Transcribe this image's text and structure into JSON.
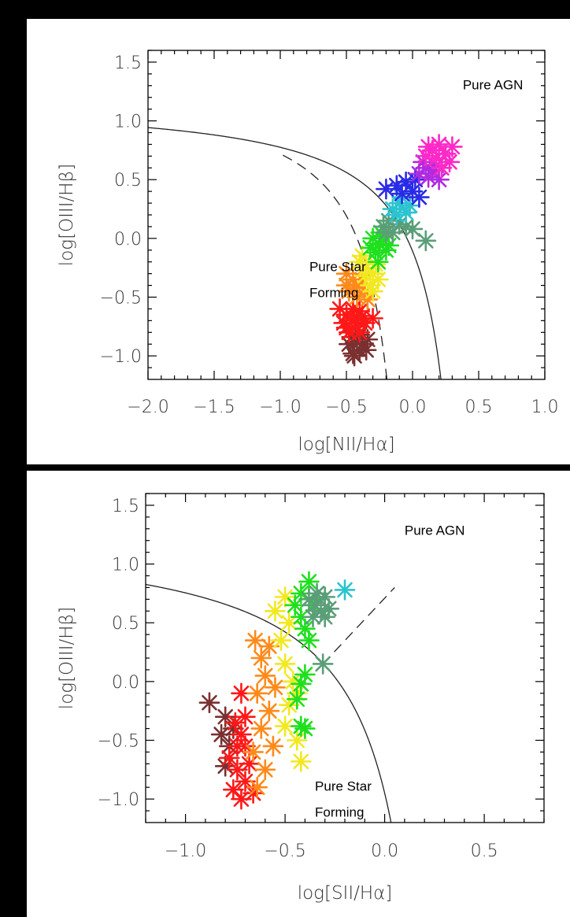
{
  "colors": {
    "page_background": "#000000",
    "panel_background": "#ffffff",
    "axes": "#000000",
    "demarcation_lines": "#222222"
  },
  "chart_data": [
    {
      "type": "scatter",
      "marker": "asterisk",
      "xlabel": "log[NII/Hα]",
      "ylabel": "log[OIII/Hβ]",
      "xlim": [
        -2.0,
        1.0
      ],
      "ylim": [
        -1.2,
        1.6
      ],
      "x_ticks": [
        "−2.0",
        "−1.5",
        "−1.0",
        "−0.5",
        "0.0",
        "0.5",
        "1.0"
      ],
      "y_ticks": [
        "−1.0",
        "−0.5",
        "0.0",
        "0.5",
        "1.0",
        "1.5"
      ],
      "annotations": [
        {
          "text": "Pure AGN",
          "x": 0.38,
          "y": 1.27
        },
        {
          "lines": [
            "Pure Star",
            "Forming"
          ],
          "x": -0.78,
          "y": -0.28
        }
      ],
      "curves": [
        {
          "style": "solid",
          "shape": "kewley",
          "a": 0.61,
          "b": 0.47,
          "c": 1.19,
          "x_min": -2.0
        },
        {
          "style": "dashed",
          "shape": "kauffmann",
          "a": 0.61,
          "b": 0.05,
          "c": 1.3,
          "x_min": -0.98
        }
      ],
      "series": [
        {
          "color": "#7a3030",
          "points": [
            [
              -0.45,
              -0.98
            ],
            [
              -0.4,
              -0.95
            ],
            [
              -0.35,
              -0.95
            ],
            [
              -0.48,
              -0.9
            ],
            [
              -0.42,
              -0.88
            ],
            [
              -0.38,
              -0.9
            ],
            [
              -0.46,
              -0.84
            ],
            [
              -0.4,
              -0.82
            ],
            [
              -0.34,
              -0.86
            ],
            [
              -0.44,
              -1.0
            ]
          ]
        },
        {
          "color": "#ff1818",
          "points": [
            [
              -0.55,
              -0.6
            ],
            [
              -0.5,
              -0.65
            ],
            [
              -0.45,
              -0.6
            ],
            [
              -0.4,
              -0.62
            ],
            [
              -0.52,
              -0.72
            ],
            [
              -0.46,
              -0.7
            ],
            [
              -0.42,
              -0.75
            ],
            [
              -0.36,
              -0.72
            ],
            [
              -0.48,
              -0.8
            ],
            [
              -0.4,
              -0.8
            ],
            [
              -0.44,
              -0.68
            ],
            [
              -0.3,
              -0.68
            ],
            [
              -0.5,
              -0.76
            ],
            [
              -0.38,
              -0.66
            ]
          ]
        },
        {
          "color": "#ff8a1a",
          "points": [
            [
              -0.5,
              -0.3
            ],
            [
              -0.45,
              -0.35
            ],
            [
              -0.4,
              -0.4
            ],
            [
              -0.48,
              -0.45
            ],
            [
              -0.42,
              -0.5
            ],
            [
              -0.36,
              -0.45
            ],
            [
              -0.44,
              -0.42
            ],
            [
              -0.38,
              -0.35
            ],
            [
              -0.5,
              -0.4
            ],
            [
              -0.34,
              -0.52
            ]
          ]
        },
        {
          "color": "#f2e820",
          "points": [
            [
              -0.4,
              -0.2
            ],
            [
              -0.35,
              -0.25
            ],
            [
              -0.3,
              -0.3
            ],
            [
              -0.38,
              -0.15
            ],
            [
              -0.32,
              -0.4
            ],
            [
              -0.28,
              -0.22
            ],
            [
              -0.36,
              -0.32
            ],
            [
              -0.3,
              -0.45
            ],
            [
              -0.26,
              -0.35
            ]
          ]
        },
        {
          "color": "#1ee01e",
          "points": [
            [
              -0.3,
              0.0
            ],
            [
              -0.25,
              -0.05
            ],
            [
              -0.2,
              -0.1
            ],
            [
              -0.28,
              -0.12
            ],
            [
              -0.22,
              0.02
            ],
            [
              -0.26,
              -0.2
            ],
            [
              -0.18,
              -0.06
            ],
            [
              -0.32,
              -0.08
            ],
            [
              -0.24,
              0.05
            ]
          ]
        },
        {
          "color": "#5a9e78",
          "points": [
            [
              -0.22,
              0.1
            ],
            [
              -0.18,
              0.15
            ],
            [
              -0.15,
              0.05
            ],
            [
              -0.1,
              0.12
            ],
            [
              -0.05,
              0.1
            ],
            [
              0.0,
              0.08
            ],
            [
              0.1,
              -0.02
            ],
            [
              -0.2,
              0.05
            ]
          ]
        },
        {
          "color": "#2ac4d0",
          "points": [
            [
              -0.15,
              0.25
            ],
            [
              -0.1,
              0.3
            ],
            [
              -0.05,
              0.22
            ],
            [
              -0.12,
              0.2
            ],
            [
              -0.08,
              0.35
            ],
            [
              -0.02,
              0.28
            ]
          ]
        },
        {
          "color": "#2a2ae8",
          "points": [
            [
              -0.2,
              0.42
            ],
            [
              -0.12,
              0.45
            ],
            [
              -0.05,
              0.48
            ],
            [
              0.0,
              0.4
            ],
            [
              -0.08,
              0.38
            ],
            [
              0.05,
              0.35
            ],
            [
              0.02,
              0.5
            ]
          ]
        },
        {
          "color": "#b02ae0",
          "points": [
            [
              0.05,
              0.55
            ],
            [
              0.1,
              0.6
            ],
            [
              0.15,
              0.58
            ],
            [
              0.2,
              0.5
            ],
            [
              0.12,
              0.52
            ],
            [
              0.08,
              0.65
            ],
            [
              0.18,
              0.62
            ]
          ]
        },
        {
          "color": "#ff28c8",
          "points": [
            [
              0.1,
              0.7
            ],
            [
              0.15,
              0.75
            ],
            [
              0.2,
              0.8
            ],
            [
              0.25,
              0.72
            ],
            [
              0.18,
              0.68
            ],
            [
              0.22,
              0.6
            ],
            [
              0.28,
              0.65
            ],
            [
              0.12,
              0.78
            ],
            [
              0.3,
              0.78
            ]
          ]
        }
      ]
    },
    {
      "type": "scatter",
      "marker": "asterisk",
      "xlabel": "log[SII/Hα]",
      "ylabel": "log[OIII/Hβ]",
      "xlim": [
        -1.2,
        0.8
      ],
      "ylim": [
        -1.2,
        1.6
      ],
      "x_ticks": [
        "−1.0",
        "−0.5",
        "0.0",
        "0.5"
      ],
      "y_ticks": [
        "−1.0",
        "−0.5",
        "0.0",
        "0.5",
        "1.0",
        "1.5"
      ],
      "annotations": [
        {
          "text": "Pure AGN",
          "x": 0.1,
          "y": 1.25
        },
        {
          "lines": [
            "Pure Star",
            "Forming"
          ],
          "x": -0.35,
          "y": -0.93
        }
      ],
      "curves": [
        {
          "style": "solid",
          "shape": "kewley",
          "a": 0.72,
          "b": 0.32,
          "c": 1.3,
          "x_min": -1.2
        },
        {
          "style": "dashed",
          "shape": "linear",
          "from": [
            -0.31,
            0.15
          ],
          "to": [
            0.05,
            0.8
          ]
        }
      ],
      "series": [
        {
          "color": "#7a3030",
          "points": [
            [
              -0.88,
              -0.18
            ],
            [
              -0.8,
              -0.3
            ],
            [
              -0.82,
              -0.45
            ],
            [
              -0.78,
              -0.55
            ],
            [
              -0.8,
              -0.72
            ],
            [
              -0.76,
              -0.4
            ]
          ]
        },
        {
          "color": "#ff1818",
          "points": [
            [
              -0.72,
              -0.1
            ],
            [
              -0.75,
              -0.35
            ],
            [
              -0.72,
              -0.45
            ],
            [
              -0.7,
              -0.55
            ],
            [
              -0.78,
              -0.65
            ],
            [
              -0.74,
              -0.75
            ],
            [
              -0.7,
              -0.85
            ],
            [
              -0.76,
              -0.92
            ],
            [
              -0.72,
              -1.0
            ],
            [
              -0.68,
              -0.7
            ],
            [
              -0.66,
              -0.95
            ],
            [
              -0.74,
              -0.55
            ],
            [
              -0.7,
              -0.3
            ]
          ]
        },
        {
          "color": "#ff8a1a",
          "points": [
            [
              -0.65,
              0.35
            ],
            [
              -0.62,
              0.2
            ],
            [
              -0.6,
              0.05
            ],
            [
              -0.64,
              -0.1
            ],
            [
              -0.58,
              -0.25
            ],
            [
              -0.62,
              -0.4
            ],
            [
              -0.66,
              -0.6
            ],
            [
              -0.6,
              -0.75
            ],
            [
              -0.64,
              -0.9
            ],
            [
              -0.56,
              -0.55
            ],
            [
              -0.58,
              0.3
            ],
            [
              -0.55,
              -0.05
            ]
          ]
        },
        {
          "color": "#f2e820",
          "points": [
            [
              -0.5,
              0.72
            ],
            [
              -0.48,
              0.5
            ],
            [
              -0.52,
              0.35
            ],
            [
              -0.5,
              0.15
            ],
            [
              -0.46,
              0.0
            ],
            [
              -0.48,
              -0.2
            ],
            [
              -0.5,
              -0.38
            ],
            [
              -0.44,
              -0.5
            ],
            [
              -0.42,
              -0.68
            ],
            [
              -0.55,
              0.6
            ],
            [
              -0.44,
              -0.1
            ]
          ]
        },
        {
          "color": "#1ee01e",
          "points": [
            [
              -0.45,
              0.65
            ],
            [
              -0.42,
              0.55
            ],
            [
              -0.4,
              0.45
            ],
            [
              -0.38,
              0.35
            ],
            [
              -0.42,
              0.75
            ],
            [
              -0.38,
              0.85
            ],
            [
              -0.4,
              0.06
            ],
            [
              -0.42,
              -0.02
            ],
            [
              -0.44,
              -0.15
            ],
            [
              -0.42,
              -0.38
            ],
            [
              -0.4,
              -0.4
            ],
            [
              -0.36,
              0.65
            ]
          ]
        },
        {
          "color": "#5a9e78",
          "points": [
            [
              -0.38,
              0.7
            ],
            [
              -0.35,
              0.65
            ],
            [
              -0.32,
              0.6
            ],
            [
              -0.3,
              0.55
            ],
            [
              -0.36,
              0.55
            ],
            [
              -0.28,
              0.62
            ],
            [
              -0.34,
              0.75
            ],
            [
              -0.3,
              0.72
            ],
            [
              -0.31,
              0.15
            ]
          ]
        },
        {
          "color": "#2ac4d0",
          "points": [
            [
              -0.2,
              0.78
            ]
          ]
        }
      ]
    }
  ]
}
